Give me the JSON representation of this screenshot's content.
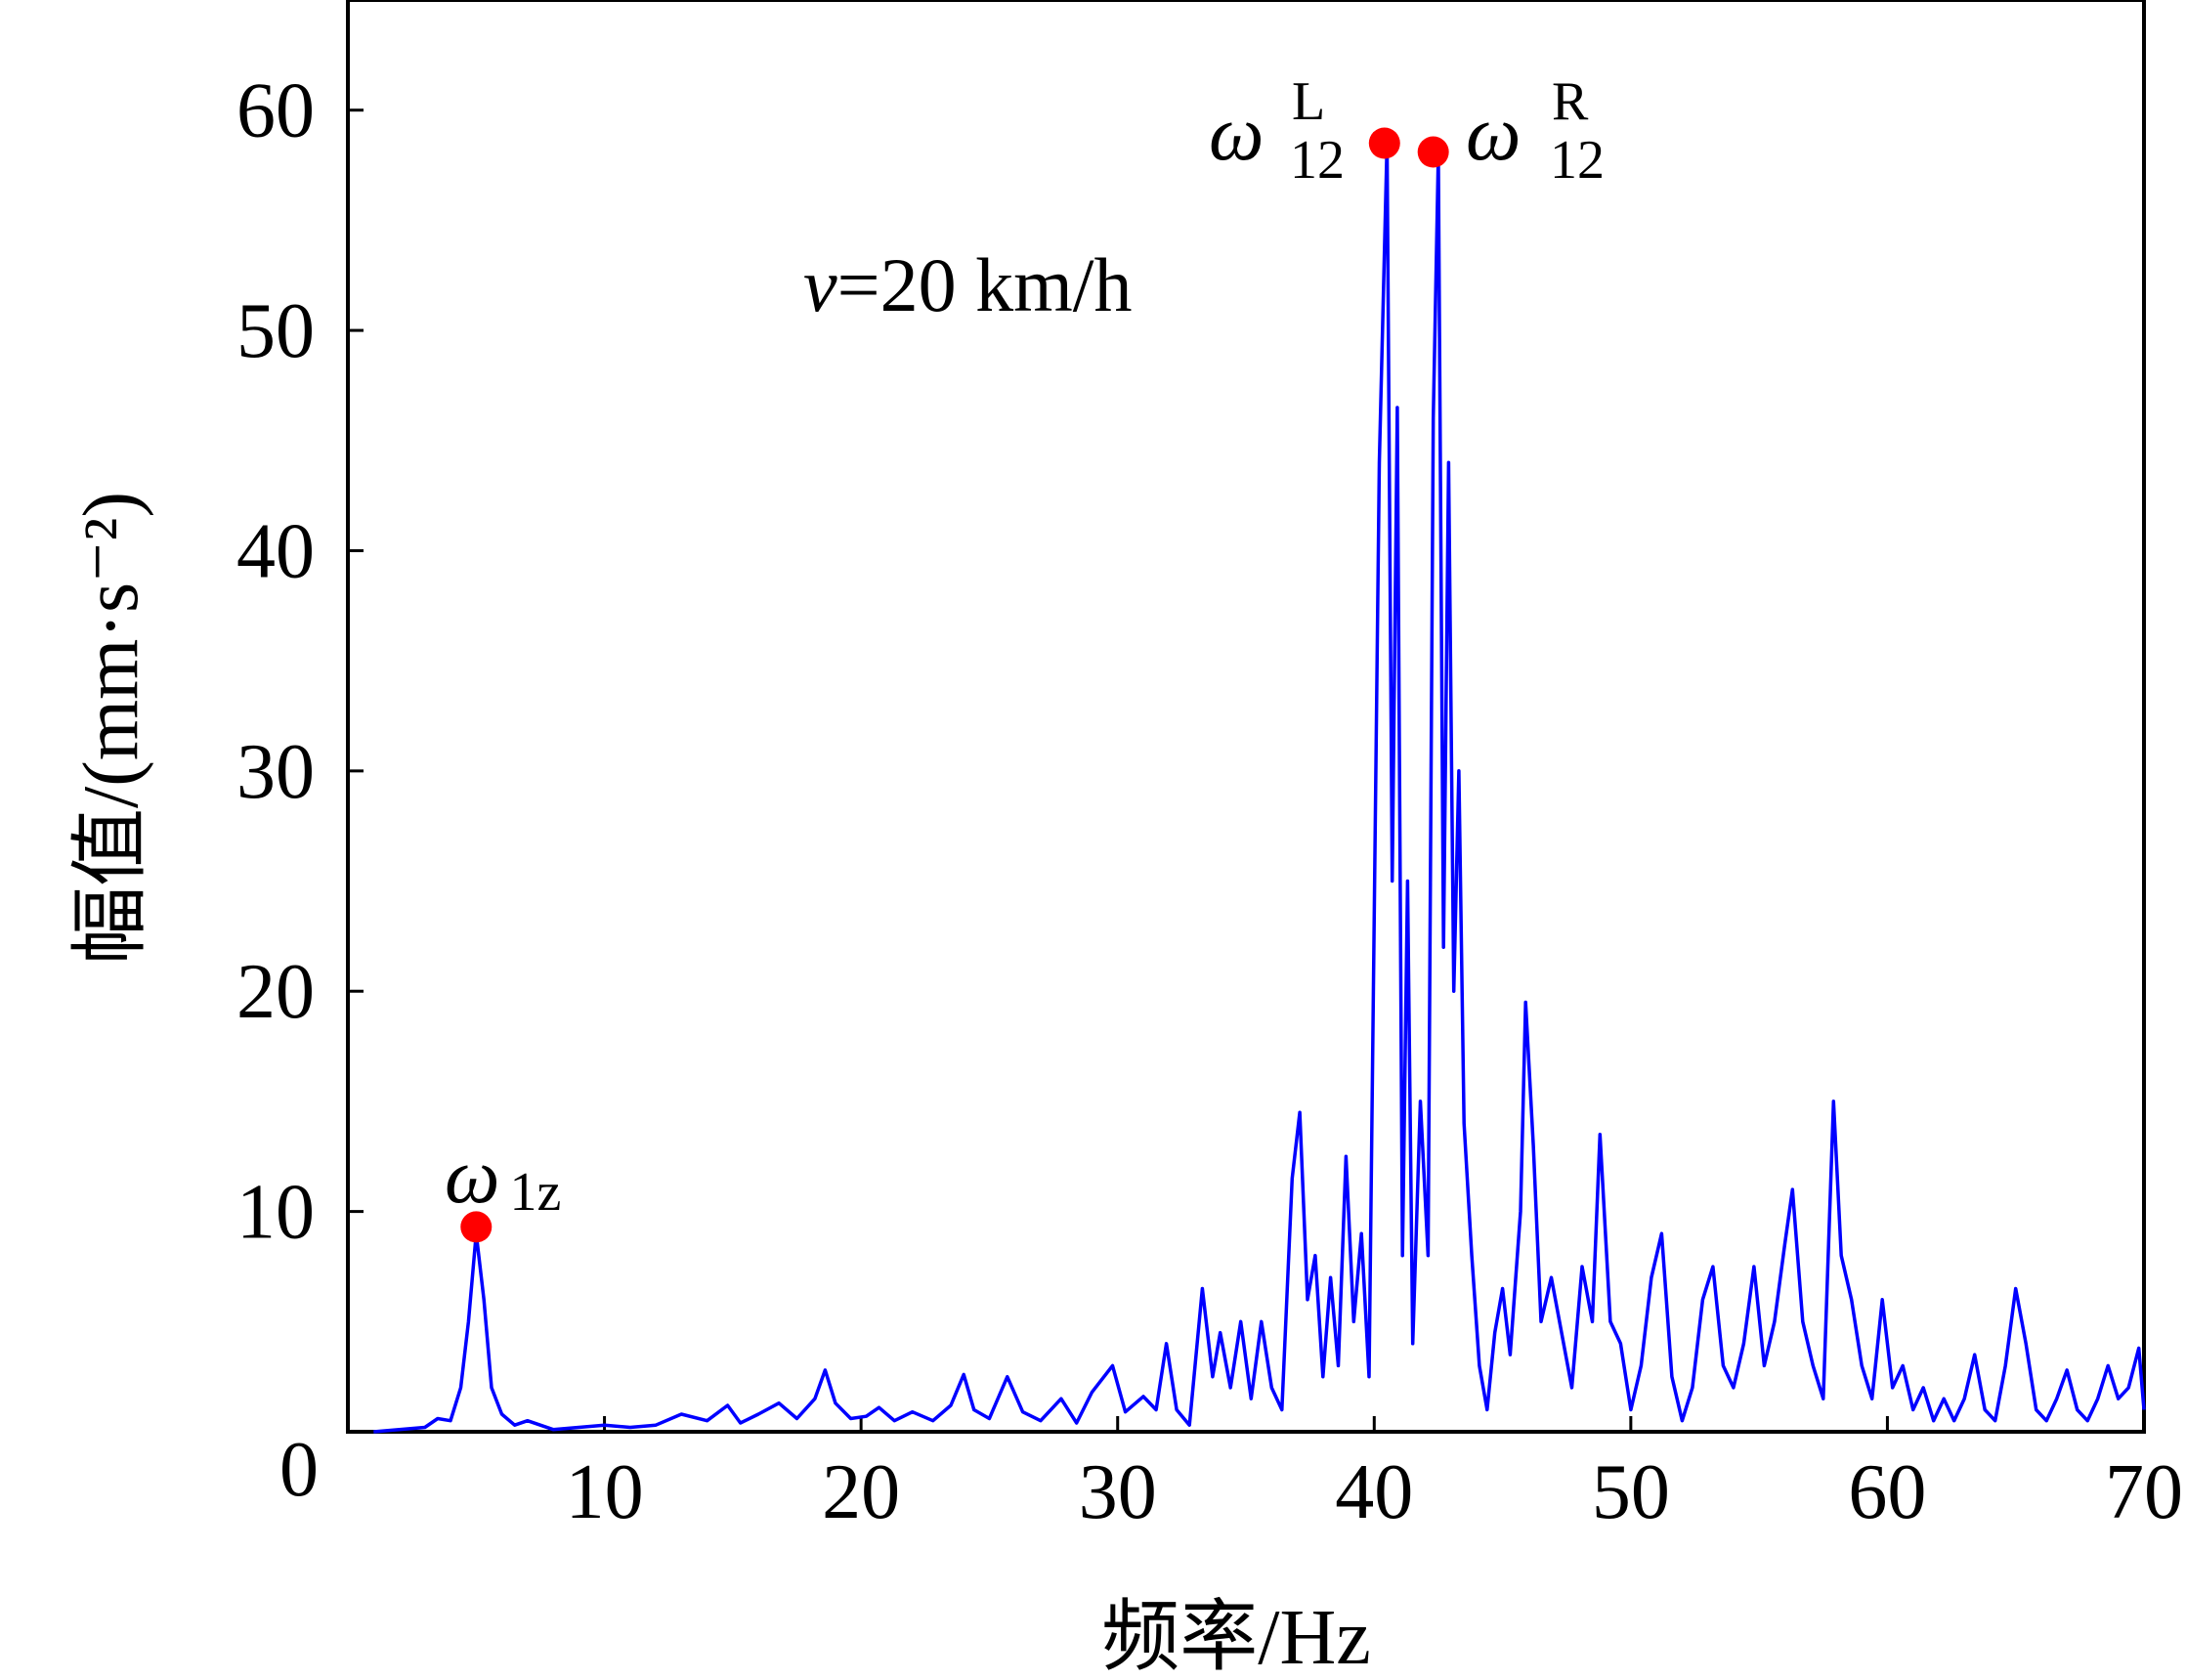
{
  "chart_data": {
    "type": "line",
    "xlabel": "频率/Hz",
    "ylabel": "幅值/(mm·s⁻²)",
    "xlim": [
      0,
      70
    ],
    "ylim": [
      0,
      65
    ],
    "x_ticks": [
      0,
      10,
      20,
      30,
      40,
      50,
      60,
      70
    ],
    "y_ticks": [
      0,
      10,
      20,
      30,
      40,
      50,
      60
    ],
    "grid": false,
    "series": [
      {
        "color": "#0000ff",
        "points": [
          [
            1.0,
            0
          ],
          [
            2.0,
            0.1
          ],
          [
            3.0,
            0.2
          ],
          [
            3.5,
            0.6
          ],
          [
            4.0,
            0.5
          ],
          [
            4.4,
            2.0
          ],
          [
            4.7,
            5.0
          ],
          [
            5.0,
            9.0
          ],
          [
            5.3,
            6.0
          ],
          [
            5.6,
            2.0
          ],
          [
            6.0,
            0.8
          ],
          [
            6.5,
            0.3
          ],
          [
            7.0,
            0.5
          ],
          [
            8.0,
            0.1
          ],
          [
            9.0,
            0.2
          ],
          [
            10.0,
            0.3
          ],
          [
            11.0,
            0.2
          ],
          [
            12.0,
            0.3
          ],
          [
            13.0,
            0.8
          ],
          [
            14.0,
            0.5
          ],
          [
            14.8,
            1.2
          ],
          [
            15.3,
            0.4
          ],
          [
            16.0,
            0.8
          ],
          [
            16.8,
            1.3
          ],
          [
            17.5,
            0.6
          ],
          [
            18.2,
            1.5
          ],
          [
            18.6,
            2.8
          ],
          [
            19.0,
            1.3
          ],
          [
            19.6,
            0.6
          ],
          [
            20.2,
            0.7
          ],
          [
            20.7,
            1.1
          ],
          [
            21.3,
            0.5
          ],
          [
            22.0,
            0.9
          ],
          [
            22.8,
            0.5
          ],
          [
            23.5,
            1.2
          ],
          [
            24.0,
            2.6
          ],
          [
            24.4,
            1.0
          ],
          [
            25.0,
            0.6
          ],
          [
            25.7,
            2.5
          ],
          [
            26.3,
            0.9
          ],
          [
            27.0,
            0.5
          ],
          [
            27.8,
            1.5
          ],
          [
            28.4,
            0.4
          ],
          [
            29.0,
            1.8
          ],
          [
            29.8,
            3.0
          ],
          [
            30.3,
            0.9
          ],
          [
            31.0,
            1.6
          ],
          [
            31.5,
            1.0
          ],
          [
            31.9,
            4.0
          ],
          [
            32.3,
            1.0
          ],
          [
            32.8,
            0.3
          ],
          [
            33.3,
            6.5
          ],
          [
            33.7,
            2.5
          ],
          [
            34.0,
            4.5
          ],
          [
            34.4,
            2.0
          ],
          [
            34.8,
            5.0
          ],
          [
            35.2,
            1.5
          ],
          [
            35.6,
            5.0
          ],
          [
            36.0,
            2.0
          ],
          [
            36.4,
            1.0
          ],
          [
            36.8,
            11.5
          ],
          [
            37.1,
            14.5
          ],
          [
            37.4,
            6.0
          ],
          [
            37.7,
            8.0
          ],
          [
            38.0,
            2.5
          ],
          [
            38.3,
            7.0
          ],
          [
            38.6,
            3.0
          ],
          [
            38.9,
            12.5
          ],
          [
            39.2,
            5.0
          ],
          [
            39.5,
            9.0
          ],
          [
            39.8,
            2.5
          ],
          [
            40.2,
            44.0
          ],
          [
            40.5,
            58.5
          ],
          [
            40.7,
            25.0
          ],
          [
            40.9,
            46.5
          ],
          [
            41.1,
            8.0
          ],
          [
            41.3,
            25.0
          ],
          [
            41.5,
            4.0
          ],
          [
            41.8,
            15.0
          ],
          [
            42.1,
            8.0
          ],
          [
            42.3,
            46.0
          ],
          [
            42.5,
            58.0
          ],
          [
            42.7,
            22.0
          ],
          [
            42.9,
            44.0
          ],
          [
            43.1,
            20.0
          ],
          [
            43.3,
            30.0
          ],
          [
            43.5,
            14.0
          ],
          [
            43.8,
            8.0
          ],
          [
            44.1,
            3.0
          ],
          [
            44.4,
            1.0
          ],
          [
            44.7,
            4.5
          ],
          [
            45.0,
            6.5
          ],
          [
            45.3,
            3.5
          ],
          [
            45.7,
            10.0
          ],
          [
            45.9,
            19.5
          ],
          [
            46.2,
            13.0
          ],
          [
            46.5,
            5.0
          ],
          [
            46.9,
            7.0
          ],
          [
            47.3,
            4.5
          ],
          [
            47.7,
            2.0
          ],
          [
            48.1,
            7.5
          ],
          [
            48.5,
            5.0
          ],
          [
            48.8,
            13.5
          ],
          [
            49.2,
            5.0
          ],
          [
            49.6,
            4.0
          ],
          [
            50.0,
            1.0
          ],
          [
            50.4,
            3.0
          ],
          [
            50.8,
            7.0
          ],
          [
            51.2,
            9.0
          ],
          [
            51.6,
            2.5
          ],
          [
            52.0,
            0.5
          ],
          [
            52.4,
            2.0
          ],
          [
            52.8,
            6.0
          ],
          [
            53.2,
            7.5
          ],
          [
            53.6,
            3.0
          ],
          [
            54.0,
            2.0
          ],
          [
            54.4,
            4.0
          ],
          [
            54.8,
            7.5
          ],
          [
            55.2,
            3.0
          ],
          [
            55.6,
            5.0
          ],
          [
            56.0,
            8.5
          ],
          [
            56.3,
            11.0
          ],
          [
            56.7,
            5.0
          ],
          [
            57.1,
            3.0
          ],
          [
            57.5,
            1.5
          ],
          [
            57.9,
            15.0
          ],
          [
            58.2,
            8.0
          ],
          [
            58.6,
            6.0
          ],
          [
            59.0,
            3.0
          ],
          [
            59.4,
            1.5
          ],
          [
            59.8,
            6.0
          ],
          [
            60.2,
            2.0
          ],
          [
            60.6,
            3.0
          ],
          [
            61.0,
            1.0
          ],
          [
            61.4,
            2.0
          ],
          [
            61.8,
            0.5
          ],
          [
            62.2,
            1.5
          ],
          [
            62.6,
            0.5
          ],
          [
            63.0,
            1.5
          ],
          [
            63.4,
            3.5
          ],
          [
            63.8,
            1.0
          ],
          [
            64.2,
            0.5
          ],
          [
            64.6,
            3.0
          ],
          [
            65.0,
            6.5
          ],
          [
            65.4,
            4.0
          ],
          [
            65.8,
            1.0
          ],
          [
            66.2,
            0.5
          ],
          [
            66.6,
            1.5
          ],
          [
            67.0,
            2.8
          ],
          [
            67.4,
            1.0
          ],
          [
            67.8,
            0.5
          ],
          [
            68.2,
            1.5
          ],
          [
            68.6,
            3.0
          ],
          [
            69.0,
            1.5
          ],
          [
            69.4,
            2.0
          ],
          [
            69.8,
            3.8
          ],
          [
            70.0,
            1.0
          ]
        ]
      }
    ],
    "markers": [
      {
        "x": 5.0,
        "y": 9.3,
        "color": "#ff0000"
      },
      {
        "x": 40.4,
        "y": 58.5,
        "color": "#ff0000"
      },
      {
        "x": 42.3,
        "y": 58.1,
        "color": "#ff0000"
      }
    ],
    "annotations": {
      "speed": {
        "var": "v",
        "rest": "=20 km/h"
      },
      "peak_1z": {
        "symbol": "ω",
        "sub": "1z"
      },
      "peak_12L": {
        "symbol": "ω",
        "sub": "12",
        "sup": "L"
      },
      "peak_12R": {
        "symbol": "ω",
        "sub": "12",
        "sup": "R"
      }
    }
  }
}
